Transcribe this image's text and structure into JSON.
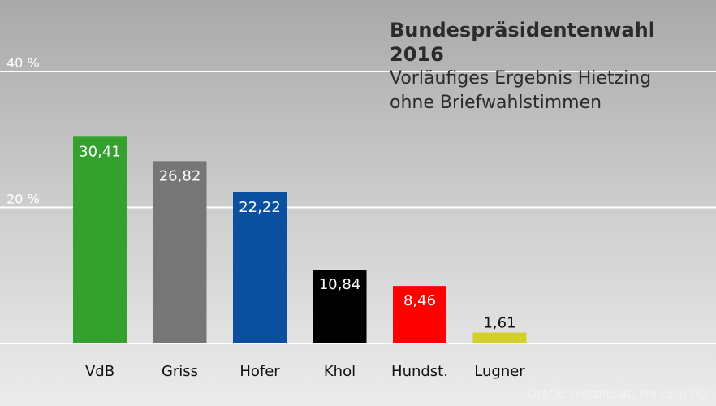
{
  "chart_data": {
    "type": "bar",
    "title": "Bundespräsidentenwahl 2016",
    "subtitle_lines": [
      "Vorläufiges Ergebnis Hietzing",
      "ohne Briefwahlstimmen"
    ],
    "categories": [
      "VdB",
      "Griss",
      "Hofer",
      "Khol",
      "Hundst.",
      "Lugner"
    ],
    "values": [
      30.41,
      26.82,
      22.22,
      10.84,
      8.46,
      1.61
    ],
    "value_labels": [
      "30,41",
      "26,82",
      "22,22",
      "10,84",
      "8,46",
      "1,61"
    ],
    "bar_colors": [
      "#34a12e",
      "#767676",
      "#0a4fa0",
      "#000000",
      "#ff0000",
      "#d4cf2a"
    ],
    "value_label_colors": [
      "#ffffff",
      "#ffffff",
      "#ffffff",
      "#ffffff",
      "#ffffff",
      "#111111"
    ],
    "ylim": [
      0,
      40
    ],
    "gridlines": [
      {
        "value": 40,
        "label": "40 %"
      },
      {
        "value": 20,
        "label": "20 %"
      }
    ],
    "xlabel": "",
    "ylabel": "",
    "credit": "Grafik: Hietzing.at, Pro Loco OG"
  }
}
